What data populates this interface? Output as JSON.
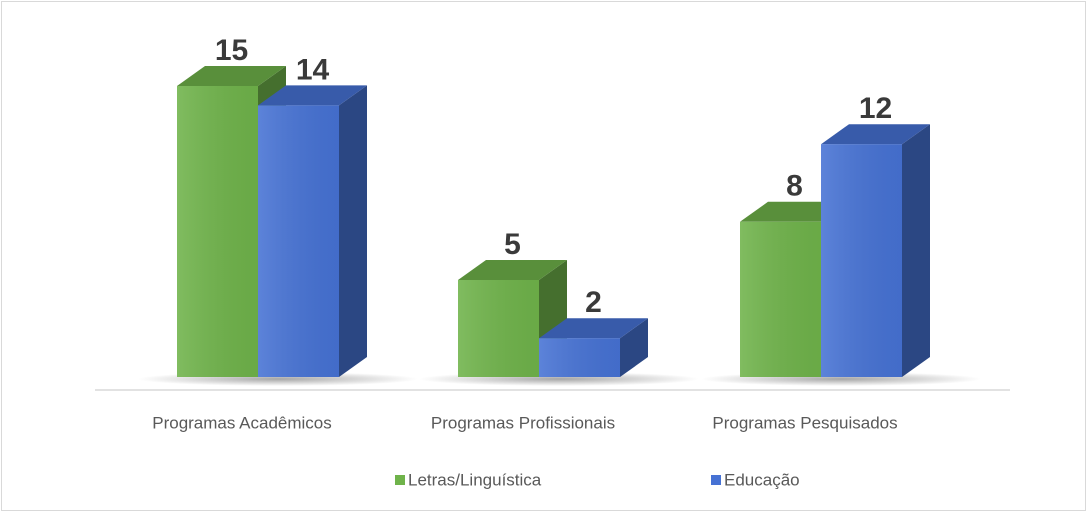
{
  "chart_data": {
    "type": "bar3d",
    "categories": [
      "Programas Acadêmicos",
      "Programas Profissionais",
      "Programas Pesquisados"
    ],
    "series": [
      {
        "name": "Letras/Linguística",
        "color": "#6fb34a",
        "values": [
          15,
          5,
          8
        ]
      },
      {
        "name": "Educação",
        "color": "#4672d4",
        "values": [
          14,
          2,
          12
        ]
      }
    ],
    "legend": "bottom"
  }
}
